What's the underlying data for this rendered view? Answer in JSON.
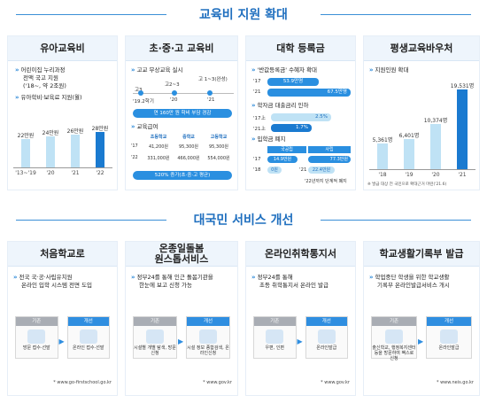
{
  "top_title": "교육비 지원 확대",
  "bottom_title": "대국민 서비스 개선",
  "card1": {
    "title": "유아교육비",
    "bullet1": "어린이집 누리과정",
    "bullet1b": "전액 국고 지원",
    "bullet1c": "('18~, 약 2조원)",
    "bullet2": "유아학비·보육료 지원(월)",
    "bars": [
      {
        "x": "'13~'19",
        "label": "22만원",
        "value": 22
      },
      {
        "x": "'20",
        "label": "24만원",
        "value": 24
      },
      {
        "x": "'21",
        "label": "26만원",
        "value": 26
      },
      {
        "x": "'22",
        "label": "28만원",
        "value": 28
      }
    ]
  },
  "card2": {
    "title": "초·중·고 교육비",
    "bullet1": "고교 무상교육 실시",
    "steps": [
      "고3",
      "고2~3",
      "고 1~3(완성)"
    ],
    "step_years": [
      "'19.2학기",
      "'20",
      "'21"
    ],
    "pill1": "연 160만 원 학비 부담 경감",
    "bullet2": "교육급여",
    "table_head": [
      "초등학교",
      "중학교",
      "고등학교"
    ],
    "row1_year": "'17",
    "row1": [
      "41,200원",
      "95,300원",
      "95,300원"
    ],
    "row2_year": "'22",
    "row2": [
      "331,000원",
      "466,000원",
      "554,000원"
    ],
    "pill2": "520% 증가(초·중·고 평균)"
  },
  "card3": {
    "title": "대학 등록금",
    "bullet1": "'반값등록금' 수혜자 확대",
    "r1_year": "'17",
    "r1_val": "53.9만명",
    "r2_year": "'21",
    "r2_val": "67.5만명",
    "bullet2": "학자금 대출금리 인하",
    "r3_year": "'17上",
    "r3_val": "2.5%",
    "r4_year": "'21上",
    "r4_val": "1.7%",
    "bullet3": "입학금 폐지",
    "col_a": "국공립",
    "col_b": "사립",
    "r5_year": "'17",
    "r5_a": "14.9만원",
    "r5_b": "77.3만원",
    "r6_year": "'18",
    "r6_a": "0원",
    "r6_year_b": "'21",
    "r6_b": "22.4만원",
    "note": "'22년까지 단계적 폐지"
  },
  "card4": {
    "title": "평생교육바우처",
    "bullet1": "지원인원 확대",
    "bars": [
      {
        "x": "'18",
        "label": "5,361명",
        "value": 5361
      },
      {
        "x": "'19",
        "label": "6,401명",
        "value": 6401
      },
      {
        "x": "'20",
        "label": "10,374명",
        "value": 10374
      },
      {
        "x": "'21",
        "label": "19,531명",
        "value": 19531
      }
    ],
    "note": "※ 발급 대상 전 국민으로 확대근거 마련('21.6)"
  },
  "service1": {
    "title": "처음학교로",
    "desc1": "전국 국·공·사립유치원",
    "desc2": "온라인 입학 시스템 전면 도입",
    "before_label": "기존",
    "after_label": "개선",
    "before_text": "방문 접수·선발",
    "after_text": "온라인 접수·선발",
    "url": "* www.go-firstschool.go.kr"
  },
  "service2": {
    "title": "온종일돌봄",
    "title2": "원스톱서비스",
    "desc1": "정부24를 통해 인근 돌봄기관을",
    "desc2": "한눈에 보고 신청 가능",
    "before_label": "기존",
    "after_label": "개선",
    "before_text": "시설별 개별 탐색, 방문신청",
    "after_text": "시설 정보 종합검색, 온라인신청",
    "url": "* www.gov.kr"
  },
  "service3": {
    "title": "온라인취학통지서",
    "desc1": "정부24를 통해",
    "desc2": "초등 취학통지서 온라인 발급",
    "before_label": "기존",
    "after_label": "개선",
    "before_text": "우편, 인편",
    "after_text": "온라인발급",
    "url": "* www.gov.kr"
  },
  "service4": {
    "title": "학교생활기록부 발급",
    "desc1": "학업중단 학생을 위한 학교생활",
    "desc2": "기록부 온라인발급서비스 개시",
    "before_label": "기존",
    "after_label": "개선",
    "before_text": "출신학교, 행정복지센터 등을 방문하여 팩스로 신청",
    "after_text": "온라인발급",
    "url": "* www.neis.go.kr"
  },
  "colors": {
    "accent": "#1f6fbf",
    "bar_light": "#bfe2f5",
    "bar_dark": "#1a7ad0",
    "pill": "#2a8fe0"
  }
}
